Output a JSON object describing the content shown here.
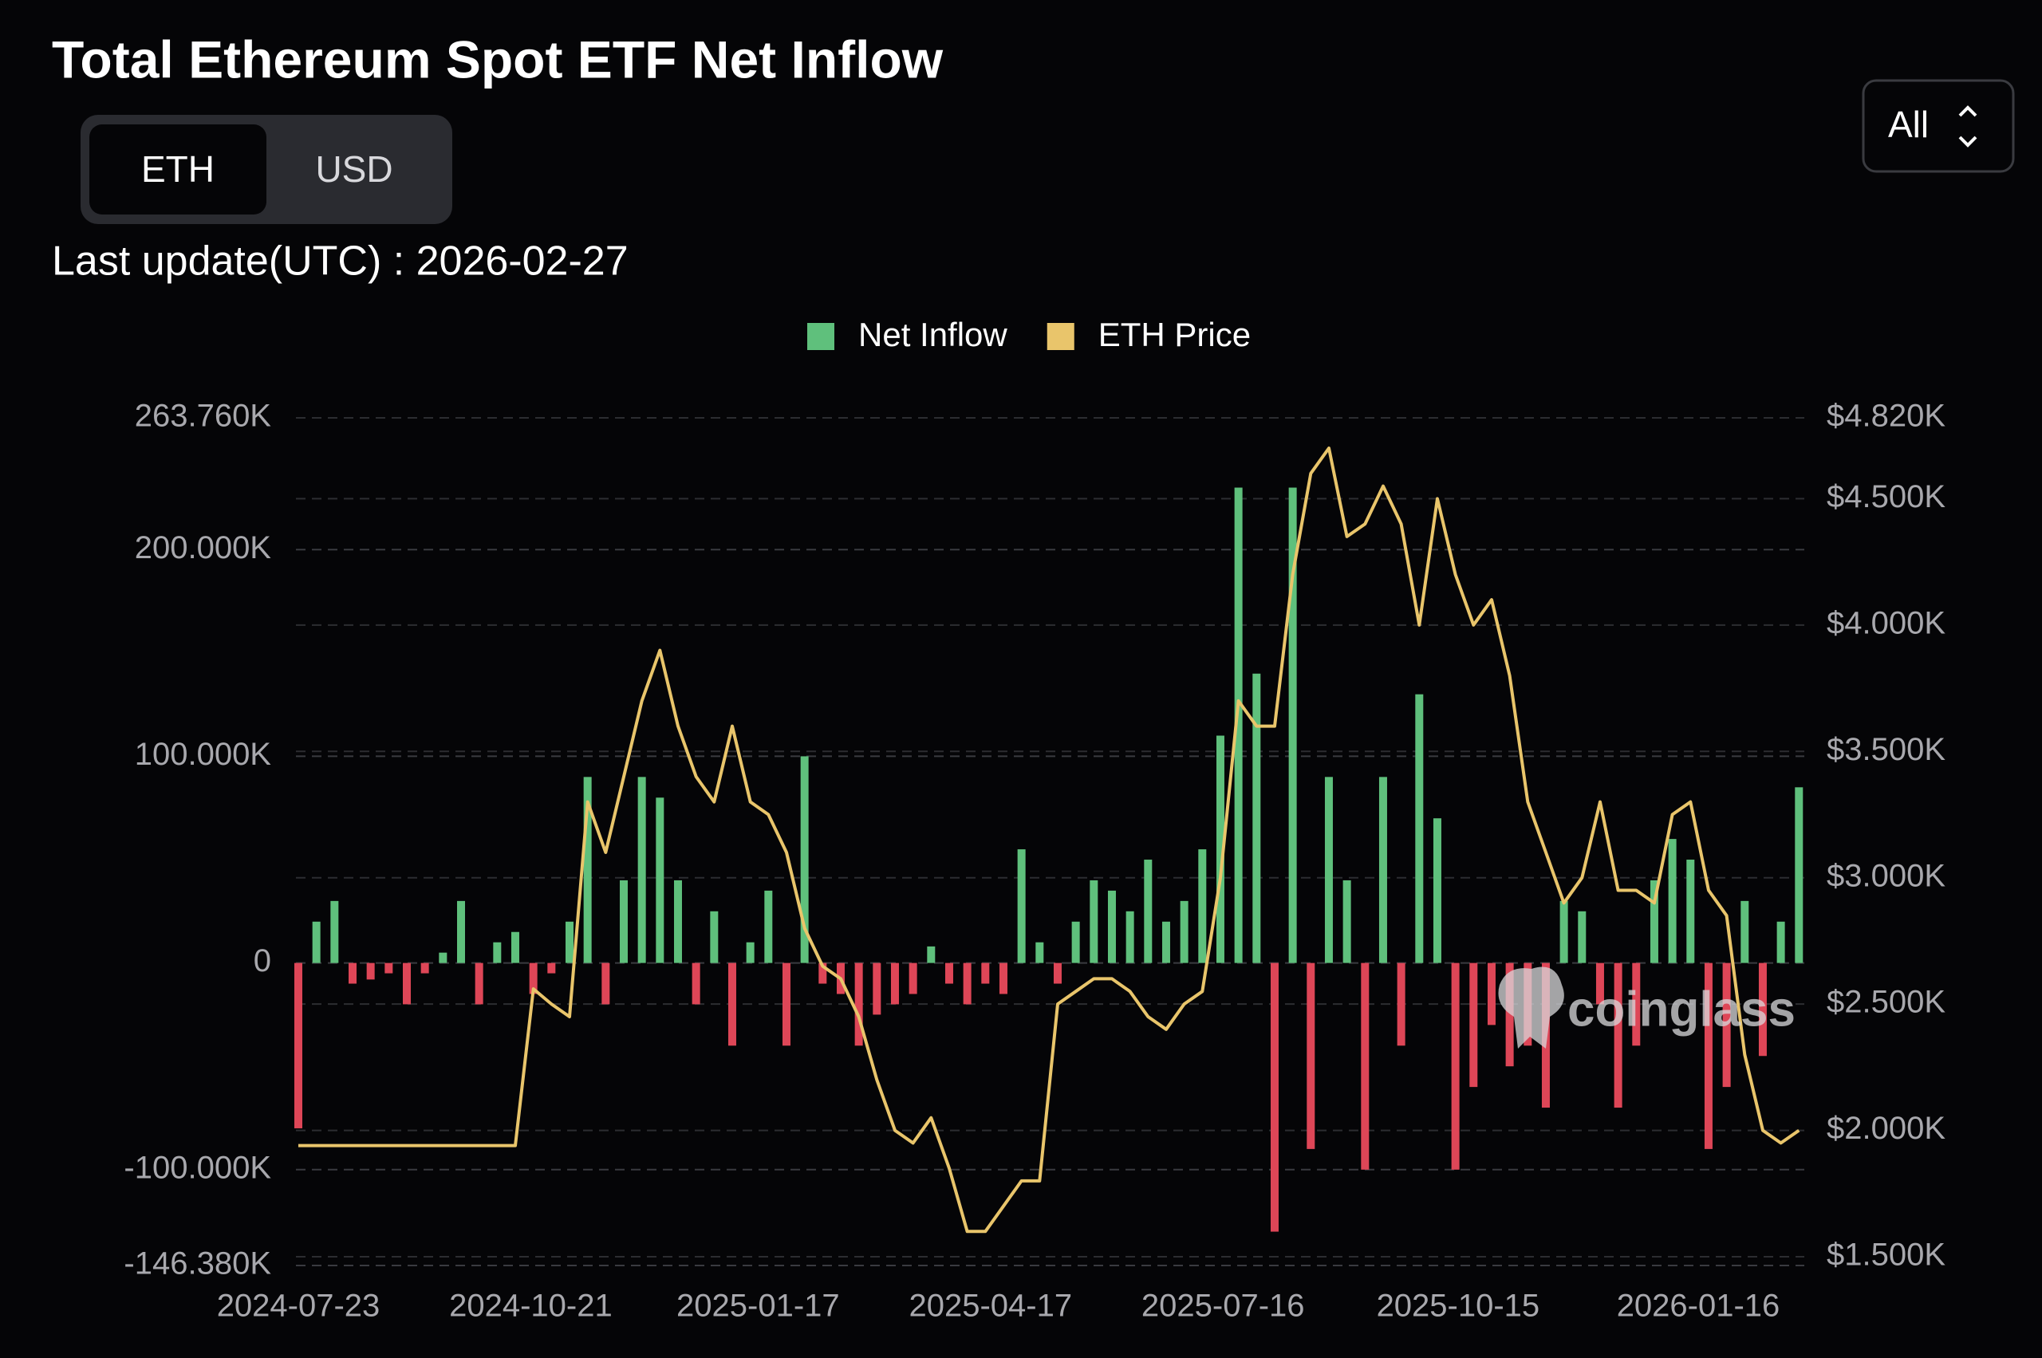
{
  "chart_data": {
    "type": "bar_line",
    "title": "Total Ethereum Spot ETF Net Inflow",
    "x": [
      "2024-07-23",
      "2024-07-30",
      "2024-08-06",
      "2024-08-13",
      "2024-08-20",
      "2024-08-27",
      "2024-09-03",
      "2024-09-10",
      "2024-09-17",
      "2024-09-24",
      "2024-10-01",
      "2024-10-08",
      "2024-10-15",
      "2024-10-22",
      "2024-10-29",
      "2024-11-05",
      "2024-11-12",
      "2024-11-19",
      "2024-11-26",
      "2024-12-03",
      "2024-12-10",
      "2024-12-17",
      "2024-12-24",
      "2024-12-31",
      "2025-01-07",
      "2025-01-14",
      "2025-01-21",
      "2025-01-28",
      "2025-02-04",
      "2025-02-11",
      "2025-02-18",
      "2025-02-25",
      "2025-03-04",
      "2025-03-11",
      "2025-03-18",
      "2025-03-25",
      "2025-04-01",
      "2025-04-08",
      "2025-04-15",
      "2025-04-22",
      "2025-04-29",
      "2025-05-06",
      "2025-05-13",
      "2025-05-20",
      "2025-05-27",
      "2025-06-03",
      "2025-06-10",
      "2025-06-17",
      "2025-06-24",
      "2025-07-01",
      "2025-07-08",
      "2025-07-15",
      "2025-07-22",
      "2025-07-29",
      "2025-08-05",
      "2025-08-12",
      "2025-08-19",
      "2025-08-26",
      "2025-09-02",
      "2025-09-09",
      "2025-09-16",
      "2025-09-23",
      "2025-09-30",
      "2025-10-07",
      "2025-10-14",
      "2025-10-21",
      "2025-10-28",
      "2025-11-04",
      "2025-11-11",
      "2025-11-18",
      "2025-11-25",
      "2025-12-02",
      "2025-12-09",
      "2025-12-16",
      "2025-12-23",
      "2025-12-30",
      "2026-01-06",
      "2026-01-13",
      "2026-01-20",
      "2026-01-27",
      "2026-02-03",
      "2026-02-10",
      "2026-02-17",
      "2026-02-24"
    ],
    "series": [
      {
        "name": "Net Inflow",
        "color": "#5fc07c",
        "negative_color": "#de4657",
        "values": [
          -80000,
          20000,
          30000,
          -10000,
          -8000,
          -5000,
          -20000,
          -5000,
          5000,
          30000,
          -20000,
          10000,
          15000,
          -15000,
          -5000,
          20000,
          90000,
          -20000,
          40000,
          90000,
          80000,
          40000,
          -20000,
          25000,
          -40000,
          10000,
          35000,
          -40000,
          100000,
          -10000,
          -15000,
          -40000,
          -25000,
          -20000,
          -15000,
          8000,
          -10000,
          -20000,
          -10000,
          -15000,
          55000,
          10000,
          -10000,
          20000,
          40000,
          35000,
          25000,
          50000,
          20000,
          30000,
          55000,
          110000,
          230000,
          140000,
          -130000,
          230000,
          -90000,
          90000,
          40000,
          -100000,
          90000,
          -40000,
          130000,
          70000,
          -100000,
          -60000,
          -30000,
          -50000,
          -40000,
          -70000,
          30000,
          25000,
          -20000,
          -70000,
          -40000,
          40000,
          60000,
          50000,
          -90000,
          -60000,
          30000,
          -45000,
          20000,
          85000
        ]
      },
      {
        "name": "ETH Price",
        "color": "#e9c56b",
        "axis": "y2",
        "values": [
          1940,
          1940,
          1940,
          1940,
          1940,
          1940,
          1940,
          1940,
          1940,
          1940,
          1940,
          1940,
          1940,
          2560,
          2500,
          2450,
          3300,
          3100,
          3400,
          3700,
          3900,
          3600,
          3400,
          3300,
          3600,
          3300,
          3250,
          3100,
          2800,
          2650,
          2600,
          2450,
          2200,
          2000,
          1950,
          2050,
          1850,
          1600,
          1600,
          1700,
          1800,
          1800,
          2500,
          2550,
          2600,
          2600,
          2550,
          2450,
          2400,
          2500,
          2550,
          3000,
          3700,
          3600,
          3600,
          4200,
          4600,
          4700,
          4350,
          4400,
          4550,
          4400,
          4000,
          4500,
          4200,
          4000,
          4100,
          3800,
          3300,
          3100,
          2900,
          3000,
          3300,
          2950,
          2950,
          2900,
          3250,
          3300,
          2950,
          2850,
          2300,
          2000,
          1950,
          2000
        ]
      }
    ],
    "xlim": [
      "2024-07-23",
      "2026-02-27"
    ],
    "xticks": [
      "2024-07-23",
      "2024-10-21",
      "2025-01-17",
      "2025-04-17",
      "2025-07-16",
      "2025-10-15",
      "2026-01-16"
    ],
    "ylim": [
      -146380,
      263760
    ],
    "yticks": [
      {
        "value": 263760,
        "label": "263.760K"
      },
      {
        "value": 200000,
        "label": "200.000K"
      },
      {
        "value": 100000,
        "label": "100.000K"
      },
      0,
      {
        "value": -100000,
        "label": "-100.000K"
      },
      {
        "value": -146380,
        "label": "-146.380K"
      }
    ],
    "y2lim": [
      1500,
      4820
    ],
    "y2ticks": [
      {
        "value": 4820,
        "label": "$4.820K"
      },
      {
        "value": 4500,
        "label": "$4.500K"
      },
      {
        "value": 4000,
        "label": "$4.000K"
      },
      {
        "value": 3500,
        "label": "$3.500K"
      },
      {
        "value": 3000,
        "label": "$3.000K"
      },
      {
        "value": 2500,
        "label": "$2.500K"
      },
      {
        "value": 2000,
        "label": "$2.000K"
      },
      {
        "value": 1500,
        "label": "$1.500K"
      }
    ],
    "grid": true,
    "legend": "top"
  },
  "ui": {
    "toggle": [
      "ETH",
      "USD"
    ],
    "range": "All",
    "last_update": "Last update(UTC) : 2026-02-27",
    "watermark": "coinglass"
  }
}
